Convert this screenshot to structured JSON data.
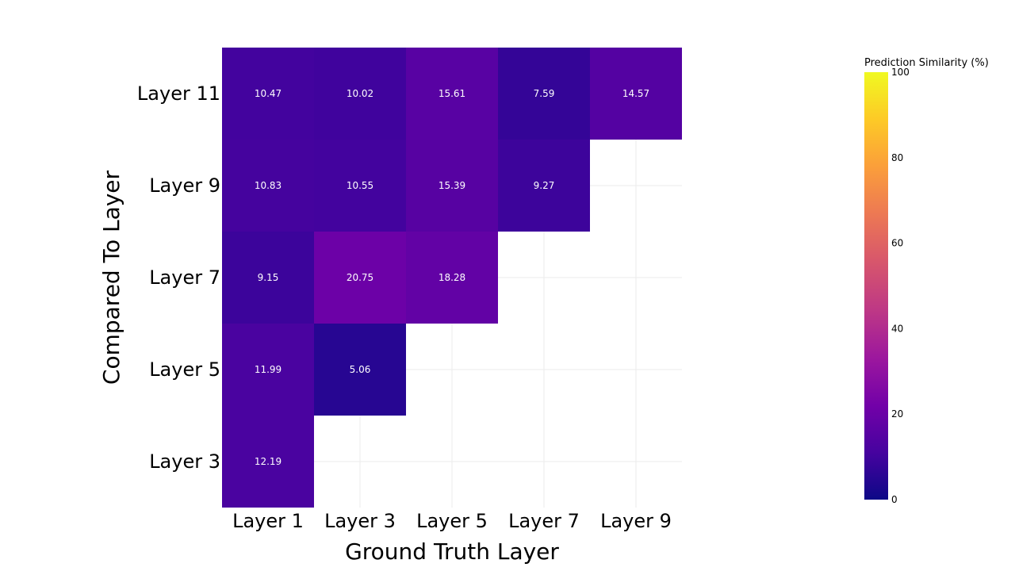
{
  "chart_data": {
    "type": "heatmap",
    "xlabel": "Ground Truth Layer",
    "ylabel": "Compared To Layer",
    "x_categories": [
      "Layer 1",
      "Layer 3",
      "Layer 5",
      "Layer 7",
      "Layer 9"
    ],
    "y_categories": [
      "Layer 11",
      "Layer 9",
      "Layer 7",
      "Layer 5",
      "Layer 3"
    ],
    "values": [
      [
        10.47,
        10.02,
        15.61,
        7.59,
        14.57
      ],
      [
        10.83,
        10.55,
        15.39,
        9.27,
        null
      ],
      [
        9.15,
        20.75,
        18.28,
        null,
        null
      ],
      [
        11.99,
        5.06,
        null,
        null,
        null
      ],
      [
        12.19,
        null,
        null,
        null,
        null
      ]
    ],
    "colorbar": {
      "title": "Prediction Similarity (%)",
      "range": [
        0,
        100
      ],
      "ticks": [
        "0",
        "20",
        "40",
        "60",
        "80",
        "100"
      ],
      "colorscale": "plasma"
    },
    "grid": true
  }
}
